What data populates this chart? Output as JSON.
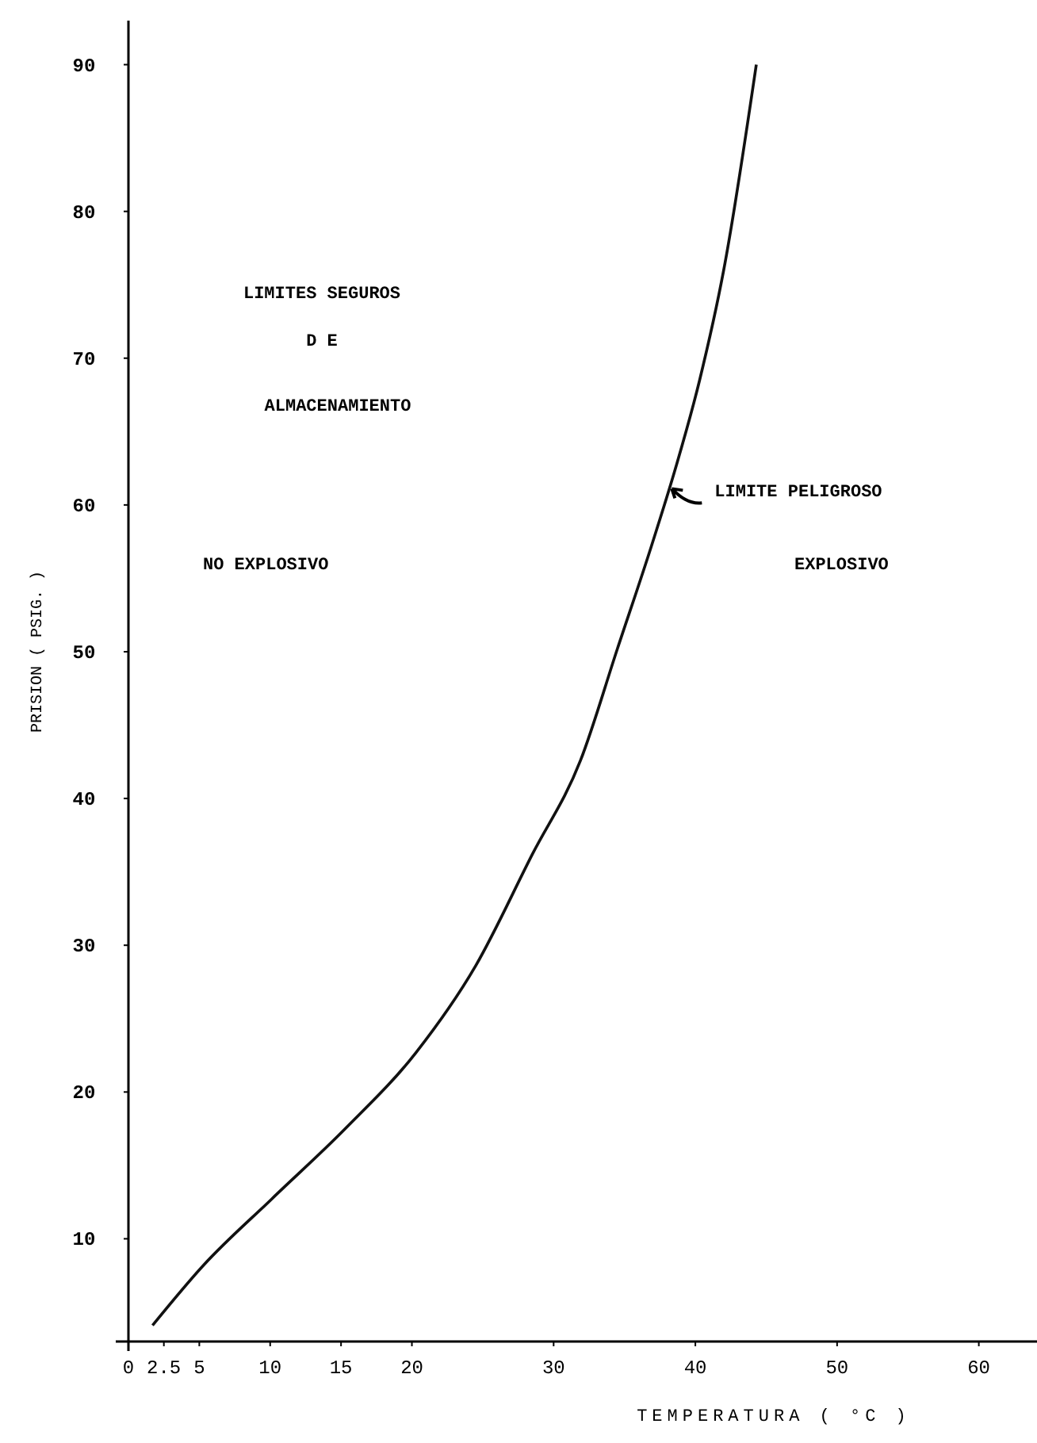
{
  "chart_data": {
    "type": "line",
    "xlabel": "TEMPERATURA ( °C )",
    "ylabel": "PRISION ( PSIG. )",
    "x": [
      1.7,
      5.3,
      10.1,
      15.3,
      20.3,
      24.5,
      28.5,
      31.9,
      34.5,
      36.9,
      38.6,
      40.3,
      42,
      44.3
    ],
    "series": [
      {
        "color": "#111111",
        "values": [
          4.1,
          8.2,
          12.7,
          17.5,
          22.7,
          28.6,
          36.2,
          42.6,
          50.2,
          57.2,
          62.5,
          68.5,
          76,
          90
        ]
      }
    ],
    "xlim": [
      0,
      65
    ],
    "xticks": [
      0,
      2.5,
      5,
      10,
      15,
      20,
      30,
      40,
      50,
      60
    ],
    "ylim": [
      3,
      93
    ],
    "yticks": [
      10,
      20,
      30,
      40,
      50,
      60,
      70,
      80,
      90
    ],
    "grid": false,
    "marker": "none",
    "line_style": "solid",
    "annotations": [
      "LIMITES SEGUROS",
      "D E",
      "ALMACENAMIENTO",
      "NO EXPLOSIVO",
      "EXPLOSIVO",
      {
        "text": "LIMITE PELIGROSO",
        "x": 38,
        "y": 61
      }
    ]
  }
}
